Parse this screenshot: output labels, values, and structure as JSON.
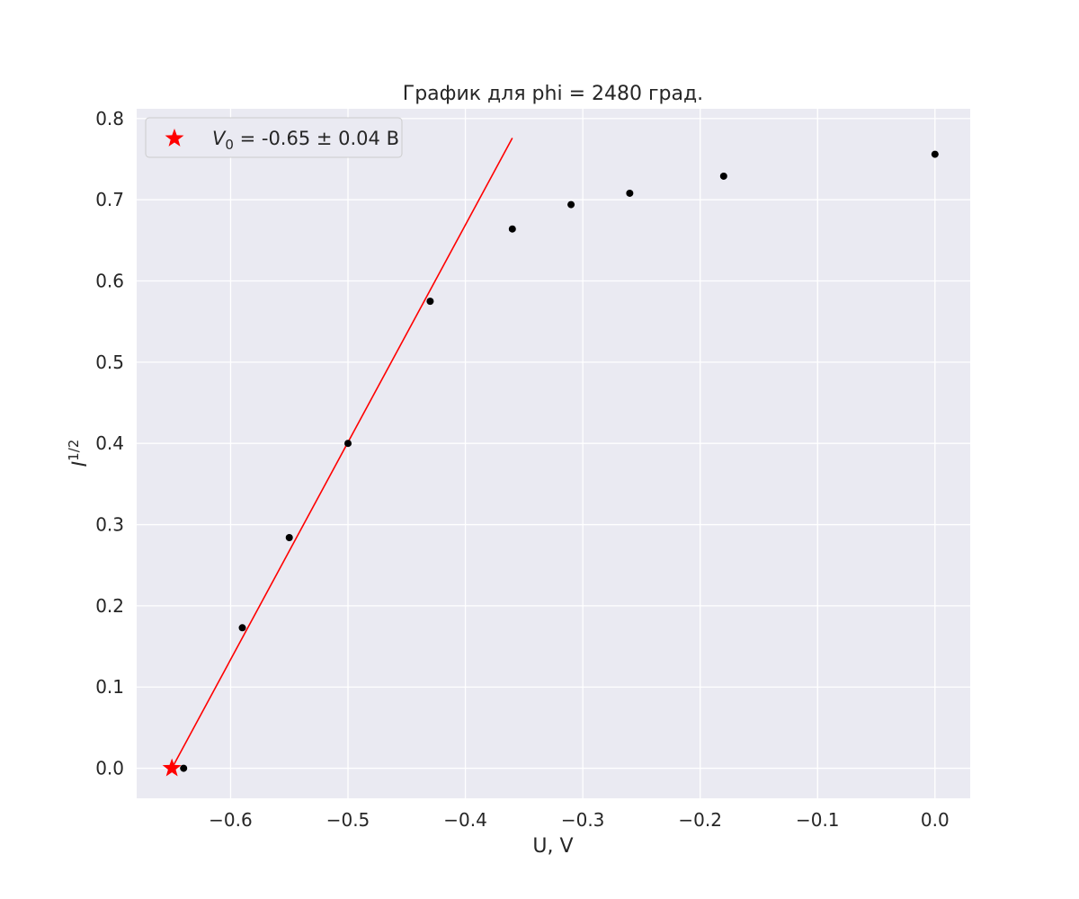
{
  "chart_data": {
    "type": "scatter",
    "title": "График для phi = 2480 град.",
    "xlabel": "U, V",
    "ylabel": "I",
    "ylabel_superscript": "1/2",
    "xlim": [
      -0.68,
      0.03
    ],
    "ylim": [
      -0.037,
      0.812
    ],
    "xticks": [
      -0.6,
      -0.5,
      -0.4,
      -0.3,
      -0.2,
      -0.1,
      0.0
    ],
    "xtick_labels": [
      "−0.6",
      "−0.5",
      "−0.4",
      "−0.3",
      "−0.2",
      "−0.1",
      "0.0"
    ],
    "yticks": [
      0.0,
      0.1,
      0.2,
      0.3,
      0.4,
      0.5,
      0.6,
      0.7,
      0.8
    ],
    "ytick_labels": [
      "0.0",
      "0.1",
      "0.2",
      "0.3",
      "0.4",
      "0.5",
      "0.6",
      "0.7",
      "0.8"
    ],
    "grid": true,
    "legend_position": "top-left",
    "series": [
      {
        "kind": "points",
        "color": "#000000",
        "x": [
          -0.64,
          -0.59,
          -0.55,
          -0.5,
          -0.43,
          -0.36,
          -0.31,
          -0.26,
          -0.18,
          0.0
        ],
        "y": [
          0.0,
          0.173,
          0.284,
          0.4,
          0.575,
          0.664,
          0.694,
          0.708,
          0.729,
          0.756
        ]
      },
      {
        "kind": "fit-line",
        "color": "#ff0000",
        "x": [
          -0.65,
          -0.36
        ],
        "y": [
          0.0,
          0.776
        ]
      },
      {
        "kind": "marker",
        "marker": "star",
        "color": "#ff0000",
        "x": [
          -0.65
        ],
        "y": [
          0.0
        ]
      }
    ],
    "legend": {
      "symbol_var": "V",
      "symbol_sub": "0",
      "text": " = -0.65 ± 0.04 B",
      "symbol": "red-star-icon"
    }
  }
}
